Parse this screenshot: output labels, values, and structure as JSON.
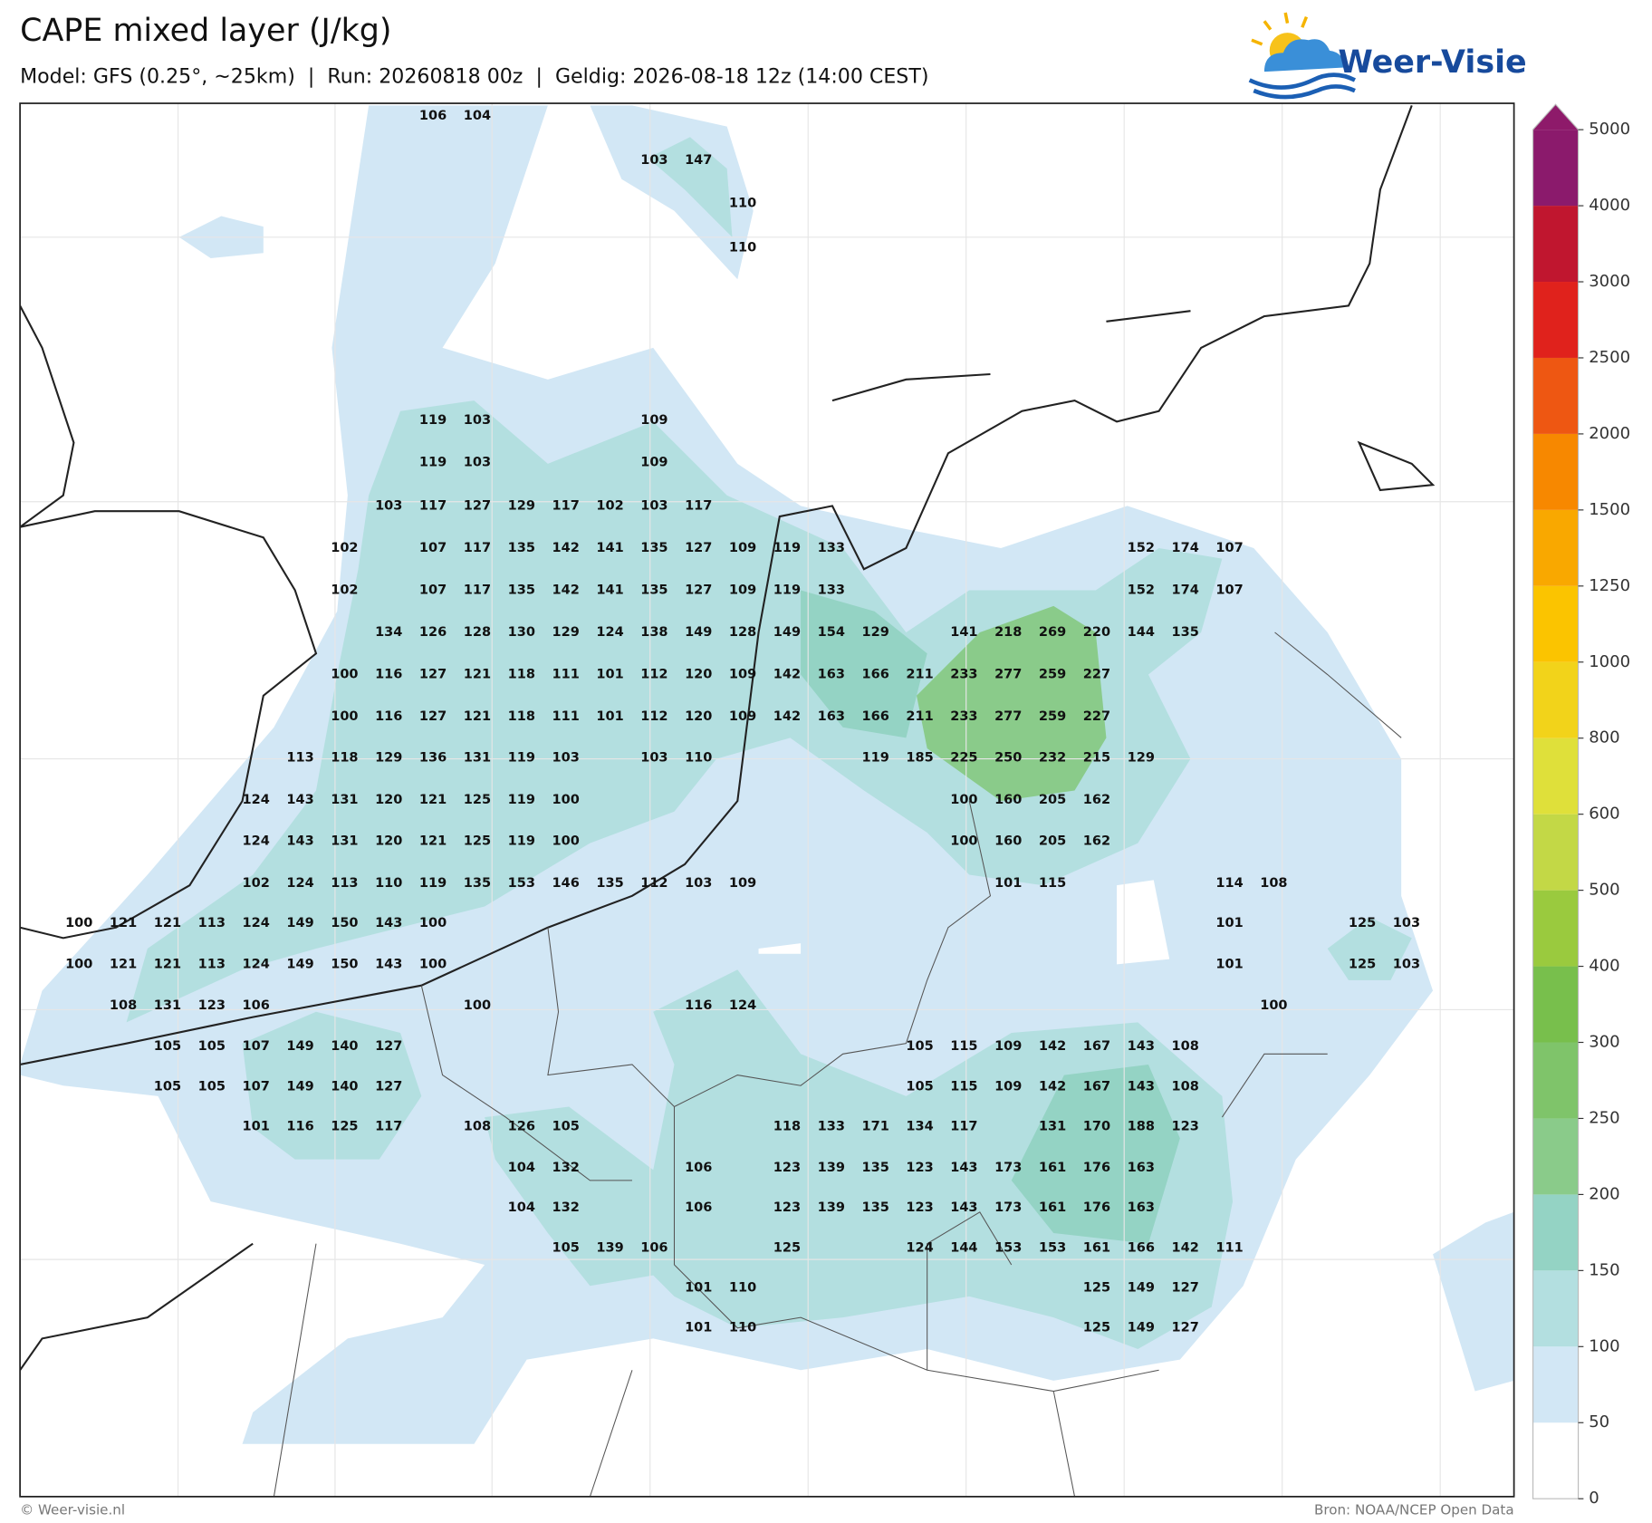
{
  "header": {
    "title": "CAPE mixed layer (J/kg)",
    "subtitle": "Model: GFS (0.25°, ~25km)  |  Run: 20260818 00z  |  Geldig: 2026-08-18 12z (14:00 CEST)"
  },
  "logo": {
    "text": "Weer-Visie"
  },
  "colorbar": {
    "ticks": [
      0,
      50,
      100,
      150,
      200,
      250,
      300,
      400,
      500,
      600,
      800,
      1000,
      1250,
      1500,
      2000,
      2500,
      3000,
      4000,
      5000
    ],
    "colors": [
      "#ffffff",
      "#d2e7f5",
      "#b3dfe0",
      "#94d3c4",
      "#8acb8a",
      "#7fc46a",
      "#78bf4c",
      "#9aca3e",
      "#c3d846",
      "#dfe03a",
      "#f2d31a",
      "#fbc400",
      "#f9a800",
      "#f78800",
      "#ee5712",
      "#e0221c",
      "#c0162f",
      "#8b1a6c"
    ],
    "over_color": "#8e1a6a"
  },
  "labels": {
    "rows": [
      [
        null,
        null,
        null,
        null,
        null,
        null,
        null,
        null,
        106,
        104
      ],
      [
        null,
        null,
        null,
        null,
        null,
        null,
        null,
        null,
        null,
        null,
        null,
        null,
        null,
        103,
        147
      ],
      [
        null,
        null,
        null,
        null,
        null,
        null,
        null,
        null,
        null,
        null,
        null,
        null,
        null,
        null,
        null,
        110
      ],
      [
        null,
        null,
        null,
        null,
        null,
        null,
        null,
        null,
        null,
        null,
        null,
        null,
        null,
        null,
        null,
        110
      ],
      [
        null,
        null,
        null,
        null,
        null,
        null,
        null,
        null,
        119,
        103,
        null,
        null,
        null,
        109
      ],
      [
        null,
        null,
        null,
        null,
        null,
        null,
        null,
        null,
        119,
        103,
        null,
        null,
        null,
        109
      ],
      [
        null,
        null,
        null,
        null,
        null,
        null,
        null,
        103,
        117,
        127,
        129,
        117,
        102,
        103,
        117
      ],
      [
        null,
        null,
        null,
        null,
        null,
        null,
        102,
        null,
        107,
        117,
        135,
        142,
        141,
        135,
        127,
        109,
        119,
        133,
        null,
        null,
        null,
        null,
        null,
        null,
        152,
        174,
        107
      ],
      [
        null,
        null,
        null,
        null,
        null,
        null,
        102,
        null,
        107,
        117,
        135,
        142,
        141,
        135,
        127,
        109,
        119,
        133,
        null,
        null,
        null,
        null,
        null,
        null,
        152,
        174,
        107
      ],
      [
        null,
        null,
        null,
        null,
        null,
        null,
        null,
        134,
        126,
        128,
        130,
        129,
        124,
        138,
        149,
        128,
        149,
        154,
        129,
        null,
        141,
        218,
        269,
        220,
        144,
        135
      ],
      [
        null,
        null,
        null,
        null,
        null,
        null,
        100,
        116,
        127,
        121,
        118,
        111,
        101,
        112,
        120,
        109,
        142,
        163,
        166,
        211,
        233,
        277,
        259,
        227
      ],
      [
        null,
        null,
        null,
        null,
        null,
        null,
        100,
        116,
        127,
        121,
        118,
        111,
        101,
        112,
        120,
        109,
        142,
        163,
        166,
        211,
        233,
        277,
        259,
        227
      ],
      [
        null,
        null,
        null,
        null,
        null,
        113,
        118,
        129,
        136,
        131,
        119,
        103,
        null,
        103,
        110,
        null,
        null,
        null,
        119,
        185,
        225,
        250,
        232,
        215,
        129
      ],
      [
        null,
        null,
        null,
        null,
        124,
        143,
        131,
        120,
        121,
        125,
        119,
        100,
        null,
        null,
        null,
        null,
        null,
        null,
        null,
        null,
        100,
        160,
        205,
        162
      ],
      [
        null,
        null,
        null,
        null,
        124,
        143,
        131,
        120,
        121,
        125,
        119,
        100,
        null,
        null,
        null,
        null,
        null,
        null,
        null,
        null,
        100,
        160,
        205,
        162
      ],
      [
        null,
        null,
        null,
        null,
        102,
        124,
        113,
        110,
        119,
        135,
        153,
        146,
        135,
        112,
        103,
        109,
        null,
        null,
        null,
        null,
        null,
        101,
        115,
        null,
        null,
        null,
        114,
        108
      ],
      [
        100,
        121,
        121,
        113,
        124,
        149,
        150,
        143,
        100,
        null,
        null,
        null,
        null,
        null,
        null,
        null,
        null,
        null,
        null,
        null,
        null,
        null,
        null,
        null,
        null,
        null,
        101,
        null,
        null,
        125,
        103
      ],
      [
        100,
        121,
        121,
        113,
        124,
        149,
        150,
        143,
        100,
        null,
        null,
        null,
        null,
        null,
        null,
        null,
        null,
        null,
        null,
        null,
        null,
        null,
        null,
        null,
        null,
        null,
        101,
        null,
        null,
        125,
        103
      ],
      [
        null,
        108,
        131,
        123,
        106,
        null,
        null,
        null,
        null,
        100,
        null,
        null,
        null,
        null,
        116,
        124,
        null,
        null,
        null,
        null,
        null,
        null,
        null,
        null,
        null,
        null,
        null,
        100
      ],
      [
        null,
        null,
        105,
        105,
        107,
        149,
        140,
        127,
        null,
        null,
        null,
        null,
        null,
        null,
        null,
        null,
        null,
        null,
        null,
        105,
        115,
        109,
        142,
        167,
        143,
        108
      ],
      [
        null,
        null,
        105,
        105,
        107,
        149,
        140,
        127,
        null,
        null,
        null,
        null,
        null,
        null,
        null,
        null,
        null,
        null,
        null,
        105,
        115,
        109,
        142,
        167,
        143,
        108
      ],
      [
        null,
        null,
        null,
        null,
        101,
        116,
        125,
        117,
        null,
        108,
        126,
        105,
        null,
        null,
        null,
        null,
        118,
        133,
        171,
        134,
        117,
        null,
        131,
        170,
        188,
        123
      ],
      [
        null,
        null,
        null,
        null,
        null,
        null,
        null,
        null,
        null,
        null,
        104,
        132,
        null,
        null,
        106,
        null,
        123,
        139,
        135,
        123,
        143,
        173,
        161,
        176,
        163
      ],
      [
        null,
        null,
        null,
        null,
        null,
        null,
        null,
        null,
        null,
        null,
        104,
        132,
        null,
        null,
        106,
        null,
        123,
        139,
        135,
        123,
        143,
        173,
        161,
        176,
        163
      ],
      [
        null,
        null,
        null,
        null,
        null,
        null,
        null,
        null,
        null,
        null,
        null,
        105,
        139,
        106,
        null,
        null,
        125,
        null,
        null,
        124,
        144,
        153,
        153,
        161,
        166,
        142,
        111
      ],
      [
        null,
        null,
        null,
        null,
        null,
        null,
        null,
        null,
        null,
        null,
        null,
        null,
        null,
        null,
        101,
        110,
        null,
        null,
        null,
        null,
        null,
        null,
        null,
        125,
        149,
        127
      ],
      [
        null,
        null,
        null,
        null,
        null,
        null,
        null,
        null,
        null,
        null,
        null,
        null,
        null,
        null,
        101,
        110,
        null,
        null,
        null,
        null,
        null,
        null,
        null,
        125,
        149,
        127
      ]
    ]
  },
  "footer": {
    "left": "© Weer-visie.nl",
    "right": "Bron: NOAA/NCEP Open Data"
  }
}
